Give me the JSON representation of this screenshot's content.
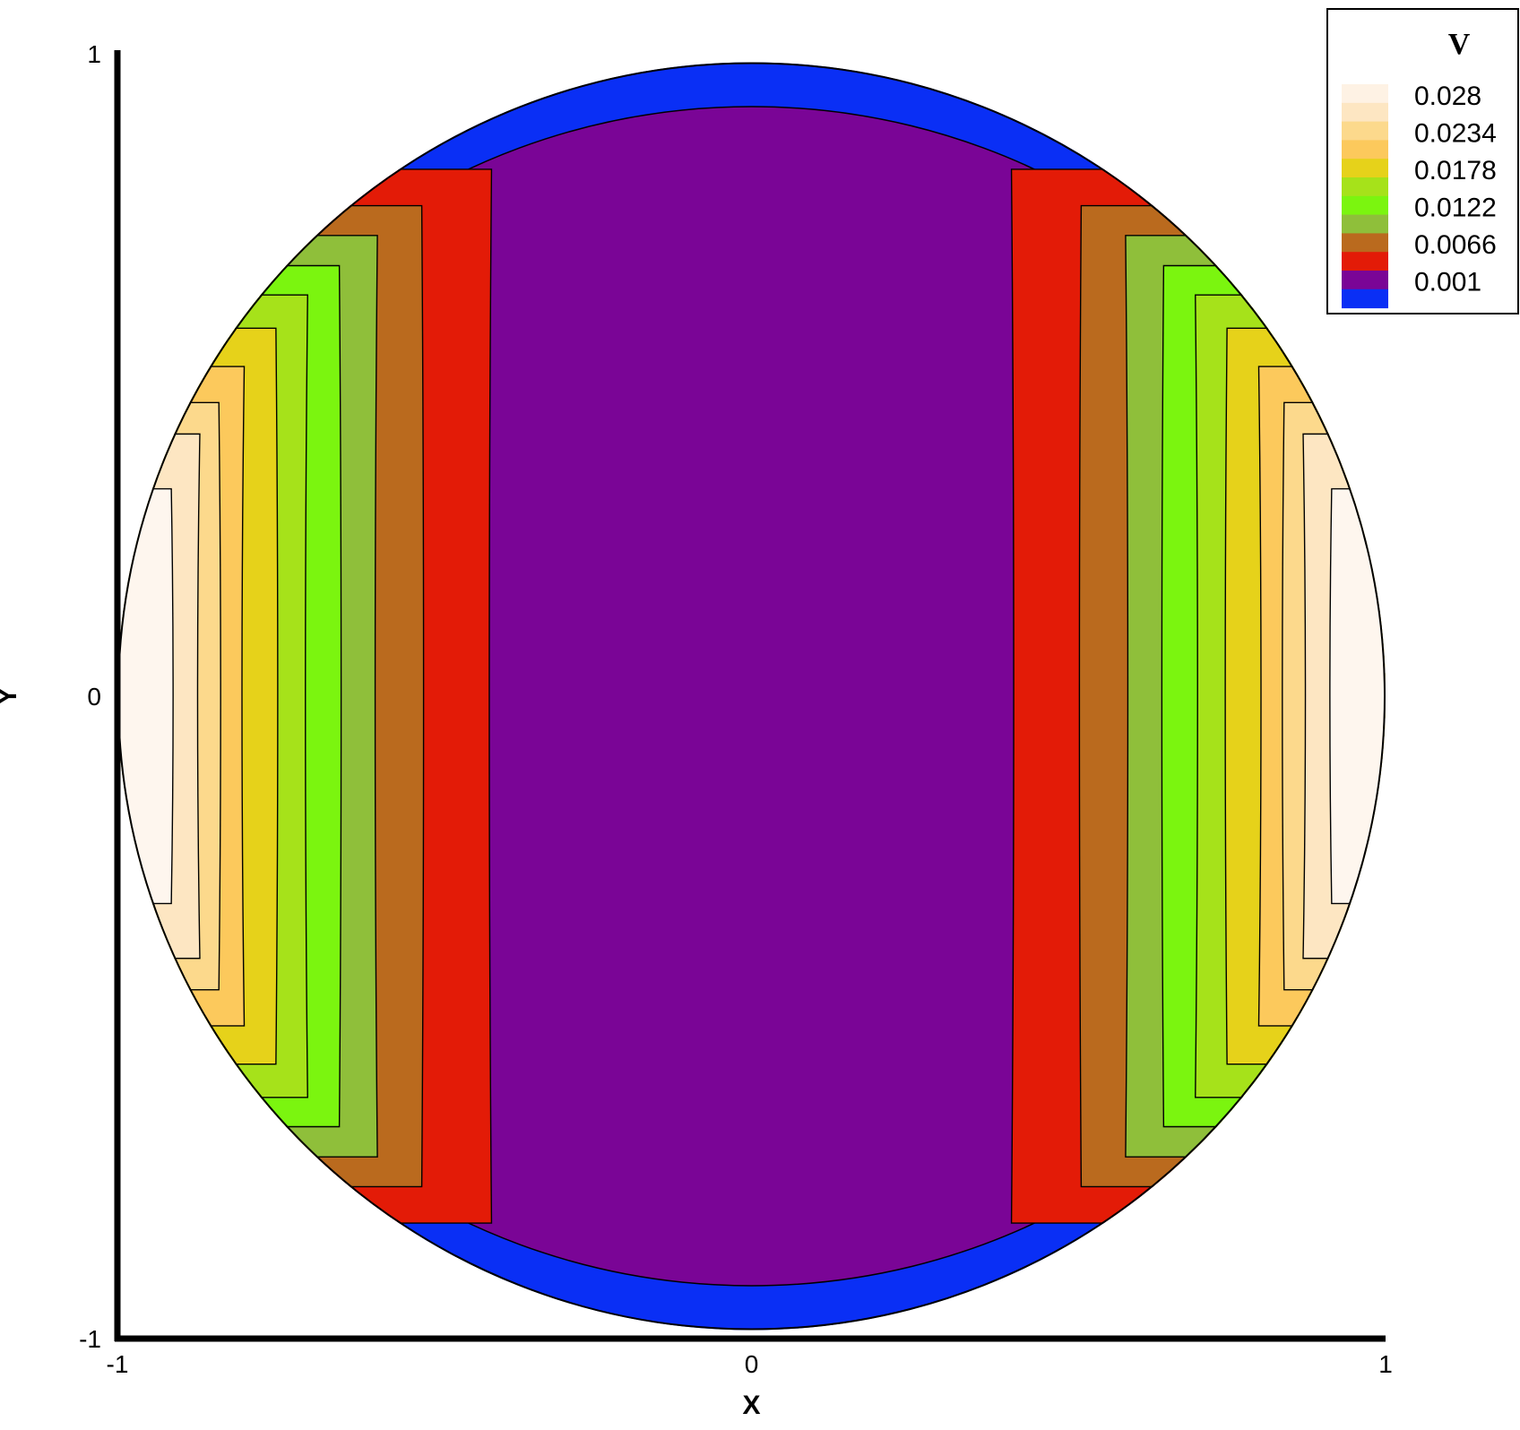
{
  "chart_data": {
    "type": "contour",
    "xlabel": "X",
    "ylabel": "Y",
    "xlim": [
      -1,
      1
    ],
    "ylim": [
      -1,
      1
    ],
    "x_ticks": [
      "-1",
      "0",
      "1"
    ],
    "y_ticks": [
      "-1",
      "0",
      "1"
    ],
    "domain_shape": "unit disk",
    "legend": {
      "title": "V",
      "placement": "top-right",
      "levels": [
        {
          "label": "0.028",
          "value": 0.028,
          "color": "#fde6c2"
        },
        {
          "label": "0.0234",
          "value": 0.0234,
          "color": "#fcc95c"
        },
        {
          "label": "0.0178",
          "value": 0.0178,
          "color": "#e6d21a"
        },
        {
          "label": "0.0122",
          "value": 0.0122,
          "color": "#8fbf3a"
        },
        {
          "label": "0.0066",
          "value": 0.0066,
          "color": "#e31b07"
        },
        {
          "label": "0.001",
          "value": 0.001,
          "color": "#0a2ff5"
        }
      ]
    },
    "swatch_colors": [
      "#fef2e4",
      "#fde6c2",
      "#fcd98c",
      "#fcc95c",
      "#e6d21a",
      "#a6e21a",
      "#7bf50f",
      "#8fbf3a",
      "#ba6a1e",
      "#e31b07",
      "#7a0596",
      "#0a2ff5"
    ],
    "bands": [
      {
        "name": "band-blue",
        "value_min": 0,
        "value_max": 0.001,
        "color": "#0a2ff5",
        "x_inner": 0.0
      },
      {
        "name": "band-purple",
        "value_min": 0.001,
        "value_max": 0.0047,
        "color": "#7a0596",
        "x_inner": 0.0
      },
      {
        "name": "band-red",
        "value_min": 0.0047,
        "value_max": 0.0066,
        "color": "#e31b07",
        "x_inner": 0.41
      },
      {
        "name": "band-brown",
        "value_min": 0.0066,
        "value_max": 0.0094,
        "color": "#ba6a1e",
        "x_inner": 0.52
      },
      {
        "name": "band-olive",
        "value_min": 0.0094,
        "value_max": 0.0122,
        "color": "#8fbf3a",
        "x_inner": 0.59
      },
      {
        "name": "band-green",
        "value_min": 0.0122,
        "value_max": 0.015,
        "color": "#7bf50f",
        "x_inner": 0.65
      },
      {
        "name": "band-lime",
        "value_min": 0.015,
        "value_max": 0.0178,
        "color": "#a6e21a",
        "x_inner": 0.7
      },
      {
        "name": "band-mustard",
        "value_min": 0.0178,
        "value_max": 0.0206,
        "color": "#e6d21a",
        "x_inner": 0.75
      },
      {
        "name": "band-gold",
        "value_min": 0.0206,
        "value_max": 0.0234,
        "color": "#fcc95c",
        "x_inner": 0.8
      },
      {
        "name": "band-light-gold",
        "value_min": 0.0234,
        "value_max": 0.0262,
        "color": "#fcd98c",
        "x_inner": 0.84
      },
      {
        "name": "band-cream",
        "value_min": 0.0262,
        "value_max": 0.028,
        "color": "#fde6c2",
        "x_inner": 0.87
      },
      {
        "name": "band-peak",
        "value_min": 0.028,
        "value_max": 0.0295,
        "color": "#fef6ee",
        "x_inner": 0.915
      }
    ],
    "grid": false
  }
}
